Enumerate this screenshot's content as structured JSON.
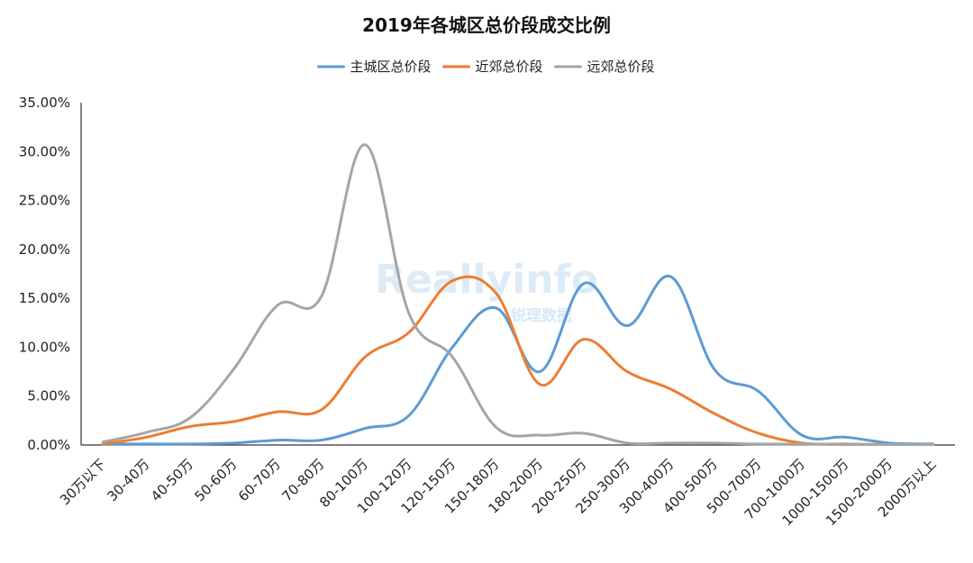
{
  "chart_data": {
    "type": "line",
    "title": "2019年各城区总价段成交比例",
    "xlabel": "",
    "ylabel": "",
    "ylim": [
      0,
      0.35
    ],
    "yticks": [
      "0.00%",
      "5.00%",
      "10.00%",
      "15.00%",
      "20.00%",
      "25.00%",
      "30.00%",
      "35.00%"
    ],
    "legend_position": "top",
    "grid": false,
    "smooth": true,
    "categories": [
      "30万以下",
      "30-40万",
      "40-50万",
      "50-60万",
      "60-70万",
      "70-80万",
      "80-100万",
      "100-120万",
      "120-150万",
      "150-180万",
      "180-200万",
      "200-250万",
      "250-300万",
      "300-400万",
      "400-500万",
      "500-700万",
      "700-1000万",
      "1000-1500万",
      "1500-2000万",
      "2000万以上"
    ],
    "series": [
      {
        "name": "主城区总价段",
        "color": "#5b9bd5",
        "values": [
          0.001,
          0.001,
          0.001,
          0.002,
          0.005,
          0.005,
          0.017,
          0.03,
          0.1,
          0.14,
          0.075,
          0.165,
          0.122,
          0.172,
          0.077,
          0.055,
          0.01,
          0.008,
          0.002,
          0.001
        ]
      },
      {
        "name": "近郊总价段",
        "color": "#ed7d31",
        "values": [
          0.001,
          0.008,
          0.019,
          0.024,
          0.034,
          0.036,
          0.09,
          0.115,
          0.168,
          0.155,
          0.062,
          0.108,
          0.075,
          0.057,
          0.032,
          0.012,
          0.002,
          0.001,
          0.0005,
          0.0005
        ]
      },
      {
        "name": "远郊总价段",
        "color": "#a5a5a5",
        "values": [
          0.003,
          0.013,
          0.028,
          0.078,
          0.143,
          0.152,
          0.307,
          0.135,
          0.09,
          0.018,
          0.01,
          0.012,
          0.002,
          0.002,
          0.002,
          0.001,
          0.001,
          0.0005,
          0.0005,
          0.0005
        ]
      }
    ]
  },
  "watermark": {
    "text_en": "Reallyinfo",
    "text_cn": "锐理数据"
  }
}
